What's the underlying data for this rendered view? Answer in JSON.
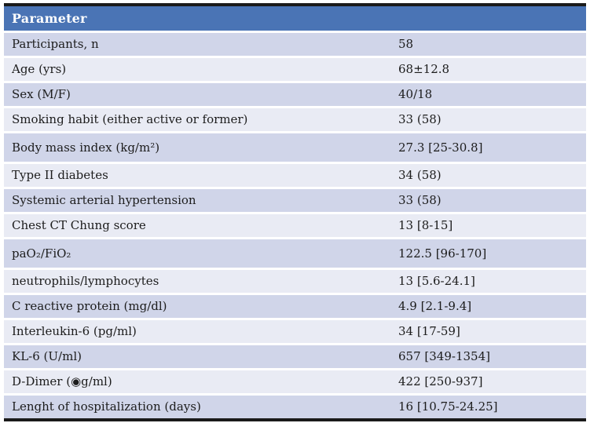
{
  "table": {
    "header": "Parameter",
    "rows": [
      {
        "param": "Participants, n",
        "value": "58"
      },
      {
        "param": "Age (yrs)",
        "value": "68±12.8"
      },
      {
        "param": "Sex (M/F)",
        "value": "40/18"
      },
      {
        "param": "Smoking habit (either active or former)",
        "value": "33 (58)"
      },
      {
        "param": "Body mass index (kg/m²)",
        "value": "27.3 [25-30.8]"
      },
      {
        "param": "Type II diabetes",
        "value": "34 (58)"
      },
      {
        "param": "Systemic arterial hypertension",
        "value": "33 (58)"
      },
      {
        "param": "Chest CT Chung score",
        "value": "13 [8-15]"
      },
      {
        "param": "paO₂/FiO₂",
        "value": "122.5 [96-170]"
      },
      {
        "param": "neutrophils/lymphocytes",
        "value": "13 [5.6-24.1]"
      },
      {
        "param": "C reactive protein (mg/dl)",
        "value": "4.9 [2.1-9.4]"
      },
      {
        "param": "Interleukin-6 (pg/ml)",
        "value": "34 [17-59]"
      },
      {
        "param": "KL-6 (U/ml)",
        "value": "657 [349-1354]"
      },
      {
        "param": "D-Dimer (◉g/ml)",
        "value": "422 [250-937]"
      },
      {
        "param": "Lenght of hospitalization (days)",
        "value": "16 [10.75-24.25]"
      }
    ],
    "colors": {
      "header_bg": "#4a74b5",
      "header_text": "#ffffff",
      "row_dark": "#d0d5e9",
      "row_light": "#e9ebf4",
      "border": "#1a1a1a",
      "body_text": "#1c1c1c"
    }
  }
}
